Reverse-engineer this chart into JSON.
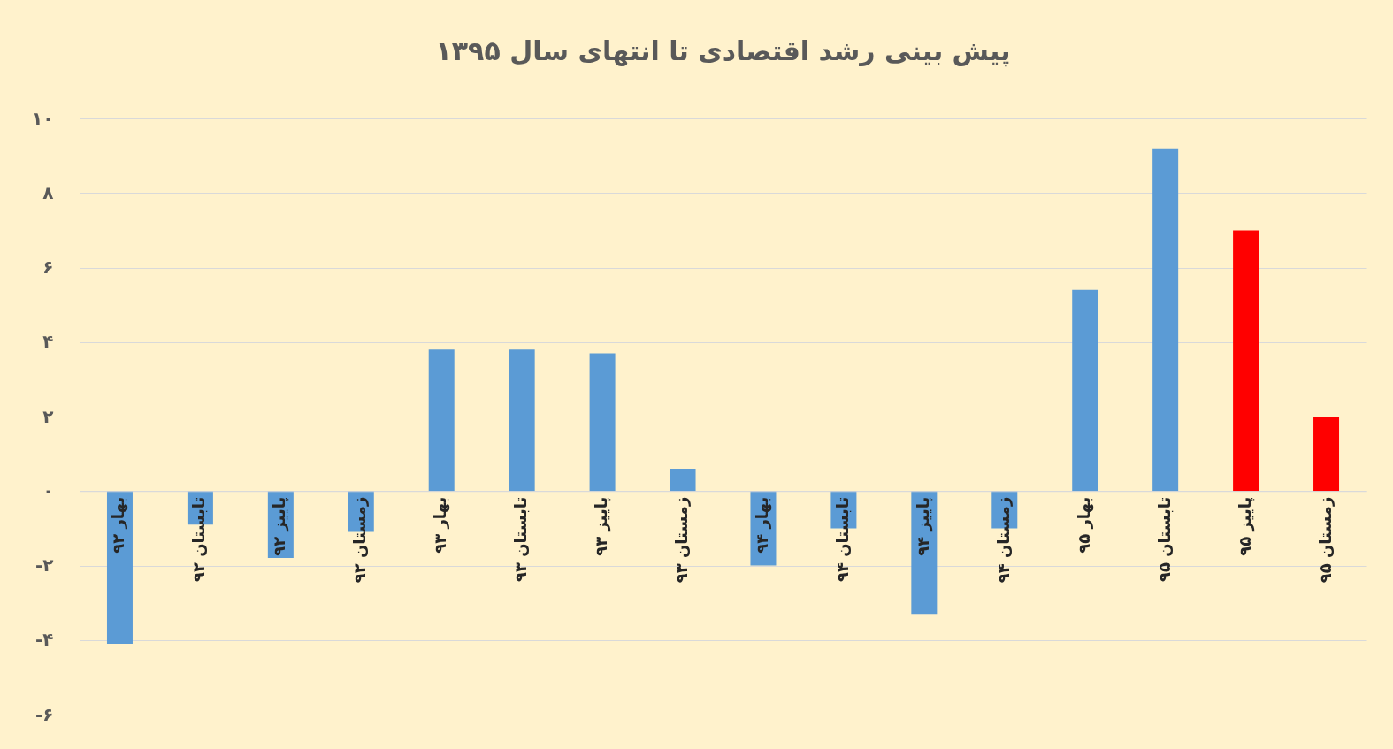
{
  "chart_data": {
    "type": "bar",
    "title": "پیش بینی رشد اقتصادی تا انتهای سال ۱۳۹۵",
    "categories": [
      "بهار ۹۲",
      "تابستان ۹۲",
      "پاییز ۹۲",
      "زمستان ۹۲",
      "بهار ۹۳",
      "تابستان ۹۳",
      "پاییز ۹۳",
      "زمستان ۹۳",
      "بهار ۹۴",
      "تابستان ۹۴",
      "پاییز ۹۴",
      "زمستان ۹۴",
      "بهار ۹۵",
      "تابستان ۹۵",
      "پاییز ۹۵",
      "زمستان ۹۵"
    ],
    "values": [
      -4.1,
      -0.9,
      -1.8,
      -1.1,
      3.8,
      3.8,
      3.7,
      0.6,
      -2.0,
      -1.0,
      -3.3,
      -1.0,
      5.4,
      9.2,
      7.0,
      2.0
    ],
    "colors": [
      "#5b9bd5",
      "#5b9bd5",
      "#5b9bd5",
      "#5b9bd5",
      "#5b9bd5",
      "#5b9bd5",
      "#5b9bd5",
      "#5b9bd5",
      "#5b9bd5",
      "#5b9bd5",
      "#5b9bd5",
      "#5b9bd5",
      "#5b9bd5",
      "#5b9bd5",
      "#ff0000",
      "#ff0000"
    ],
    "ylim": [
      -6,
      10
    ],
    "yticks": [
      {
        "value": -6,
        "label": "-۶"
      },
      {
        "value": -4,
        "label": "-۴"
      },
      {
        "value": -2,
        "label": "-۲"
      },
      {
        "value": 0,
        "label": "۰"
      },
      {
        "value": 2,
        "label": "۲"
      },
      {
        "value": 4,
        "label": "۴"
      },
      {
        "value": 6,
        "label": "۶"
      },
      {
        "value": 8,
        "label": "۸"
      },
      {
        "value": 10,
        "label": "۱۰"
      }
    ],
    "grid": "y",
    "legend": false
  }
}
